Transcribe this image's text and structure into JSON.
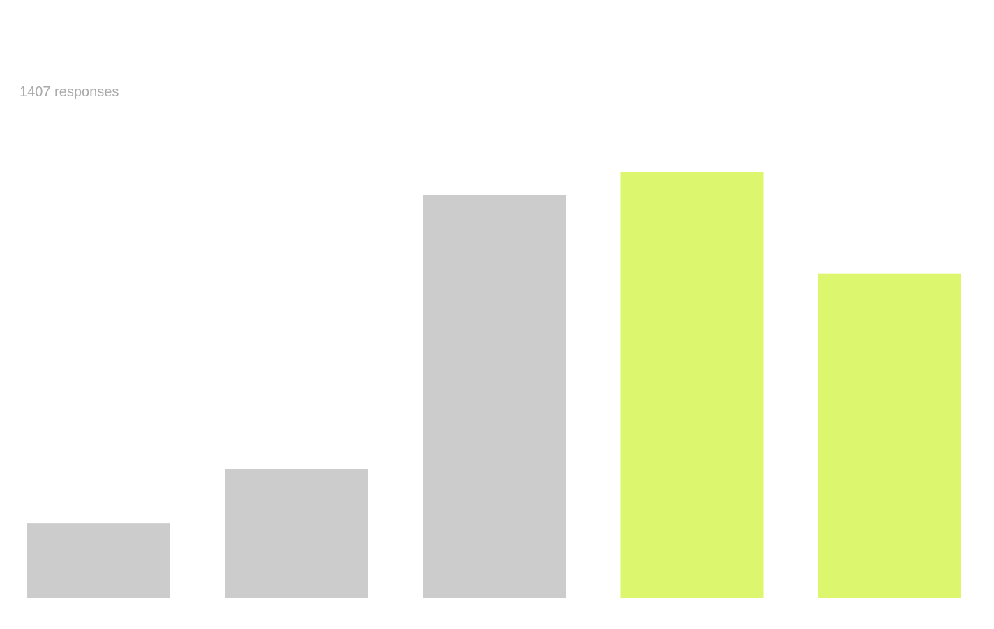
{
  "chart_data": {
    "type": "bar",
    "subtitle": "1407 responses",
    "categories": [
      null,
      null,
      null,
      null,
      null
    ],
    "values": [
      5.5,
      9.5,
      29.7,
      31.4,
      23.9
    ],
    "colors": [
      "#cccccc",
      "#cccccc",
      "#cccccc",
      "#dcf76e",
      "#dcf76e"
    ],
    "ylim": [
      0,
      35
    ]
  }
}
